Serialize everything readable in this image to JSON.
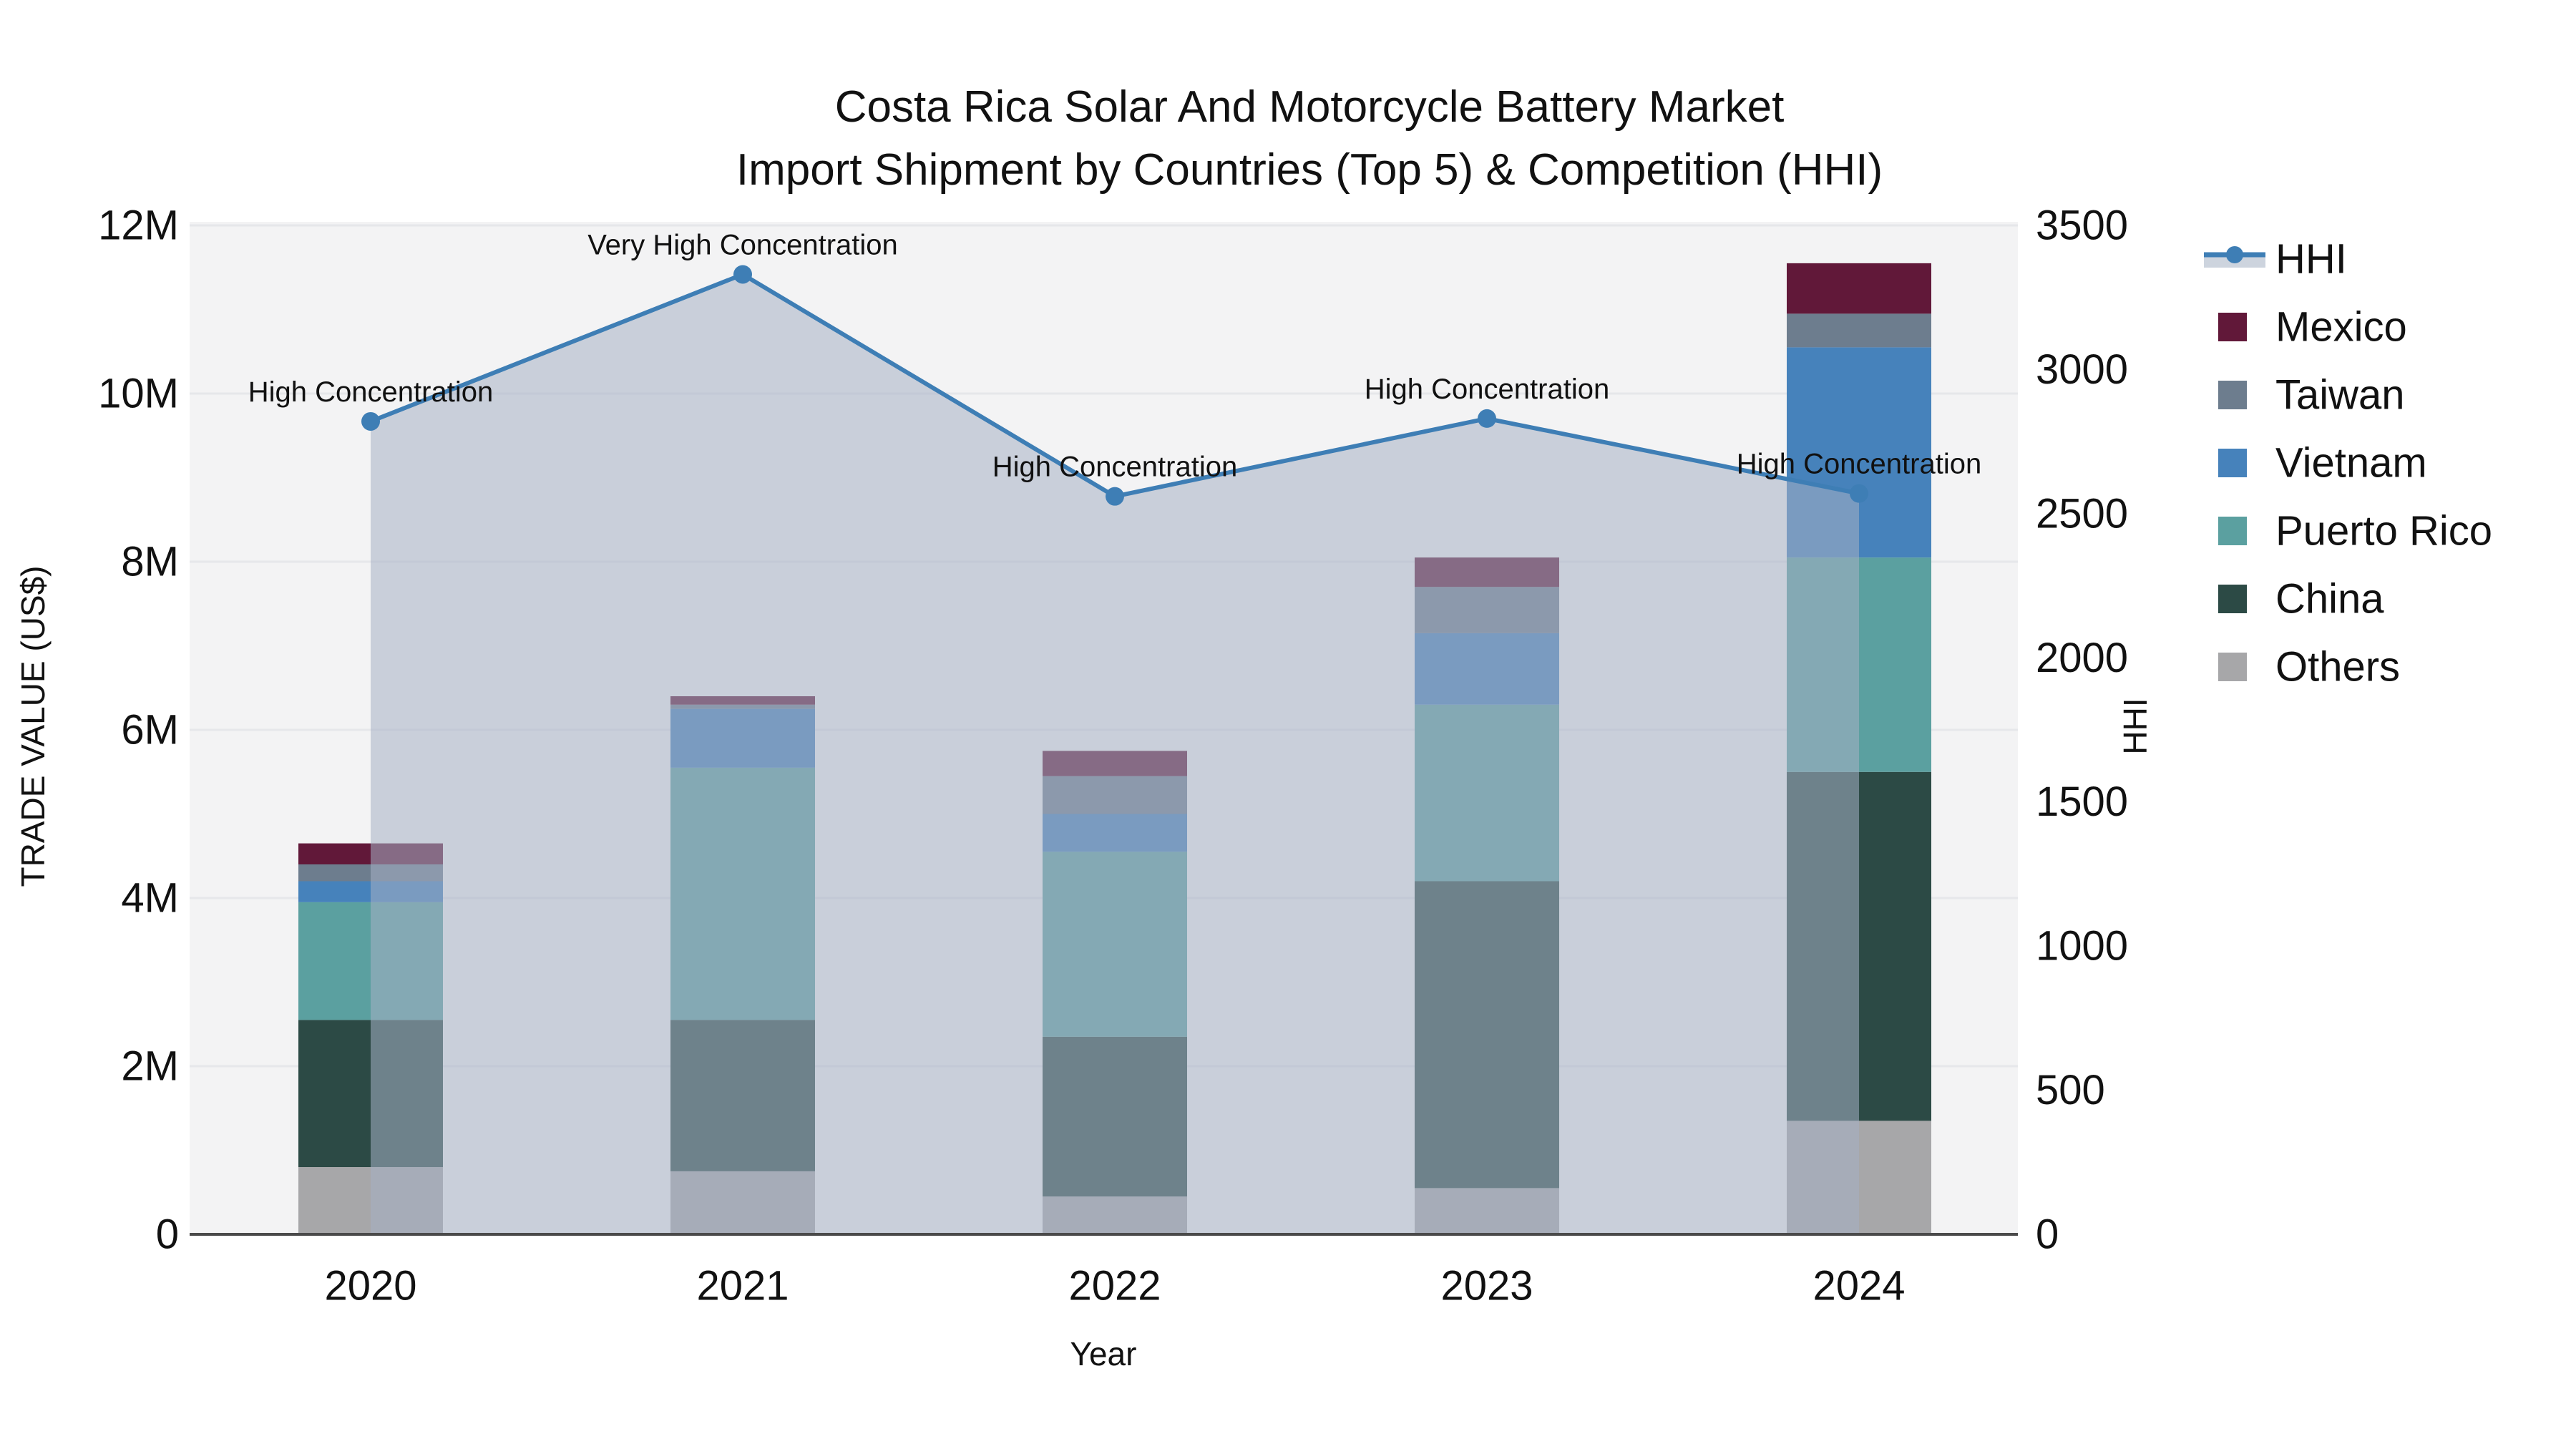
{
  "title": {
    "line1": "Costa Rica Solar And Motorcycle Battery Market",
    "line2": "Import Shipment by Countries (Top 5) & Competition (HHI)"
  },
  "axes": {
    "y_left": {
      "label": "TRADE VALUE (US$)",
      "ticks": [
        "0",
        "2M",
        "4M",
        "6M",
        "8M",
        "10M",
        "12M"
      ],
      "range_millions": [
        0,
        12
      ]
    },
    "y_right": {
      "label": "HHI",
      "ticks": [
        "0",
        "500",
        "1000",
        "1500",
        "2000",
        "2500",
        "3000",
        "3500"
      ],
      "range": [
        0,
        3500
      ]
    },
    "x": {
      "label": "Year",
      "ticks": [
        "2020",
        "2021",
        "2022",
        "2023",
        "2024"
      ]
    }
  },
  "legend": {
    "items": [
      {
        "label": "HHI",
        "type": "line",
        "color": "#3e7eb5"
      },
      {
        "label": "Mexico",
        "type": "swatch",
        "color": "#611839"
      },
      {
        "label": "Taiwan",
        "type": "swatch",
        "color": "#6d7d8e"
      },
      {
        "label": "Vietnam",
        "type": "swatch",
        "color": "#4682bb"
      },
      {
        "label": "Puerto Rico",
        "type": "swatch",
        "color": "#5ba0a0"
      },
      {
        "label": "China",
        "type": "swatch",
        "color": "#2c4a45"
      },
      {
        "label": "Others",
        "type": "swatch",
        "color": "#a7a7a9"
      }
    ]
  },
  "chart_data": {
    "type": "bar",
    "subtype": "stacked-bar-with-line",
    "categories": [
      "2020",
      "2021",
      "2022",
      "2023",
      "2024"
    ],
    "value_unit": "US$ millions (left axis)",
    "series": [
      {
        "name": "Others",
        "color": "#a7a7a9",
        "values": [
          0.8,
          0.75,
          0.45,
          0.55,
          1.35
        ]
      },
      {
        "name": "China",
        "color": "#2c4a45",
        "values": [
          1.75,
          1.8,
          1.9,
          3.65,
          4.15
        ]
      },
      {
        "name": "Puerto Rico",
        "color": "#5ba0a0",
        "values": [
          1.4,
          3.0,
          2.2,
          2.1,
          2.55
        ]
      },
      {
        "name": "Vietnam",
        "color": "#4682bb",
        "values": [
          0.25,
          0.7,
          0.45,
          0.85,
          2.5
        ]
      },
      {
        "name": "Taiwan",
        "color": "#6d7d8e",
        "values": [
          0.2,
          0.05,
          0.45,
          0.55,
          0.4
        ]
      },
      {
        "name": "Mexico",
        "color": "#611839",
        "values": [
          0.25,
          0.1,
          0.3,
          0.35,
          0.6
        ]
      }
    ],
    "totals_millions": [
      4.65,
      6.4,
      5.75,
      8.05,
      11.55
    ],
    "hhi_line": {
      "name": "HHI",
      "color": "#3e7eb5",
      "area_fill": "rgba(165,177,196,0.55)",
      "values": [
        2820,
        3330,
        2560,
        2830,
        2570
      ],
      "annotations": [
        "High Concentration",
        "Very High Concentration",
        "High Concentration",
        "High Concentration",
        "High Concentration"
      ]
    },
    "ylim_left_millions": [
      0,
      12
    ],
    "ylim_right": [
      0,
      3500
    ],
    "grid": "horizontal",
    "legend_position": "right"
  },
  "colors": {
    "plot_background": "#f3f3f4",
    "gridline": "#e6e7ea",
    "axis_line": "#4a4a4a",
    "text": "#111111",
    "hhi_legend_band": "#cdd4de"
  }
}
